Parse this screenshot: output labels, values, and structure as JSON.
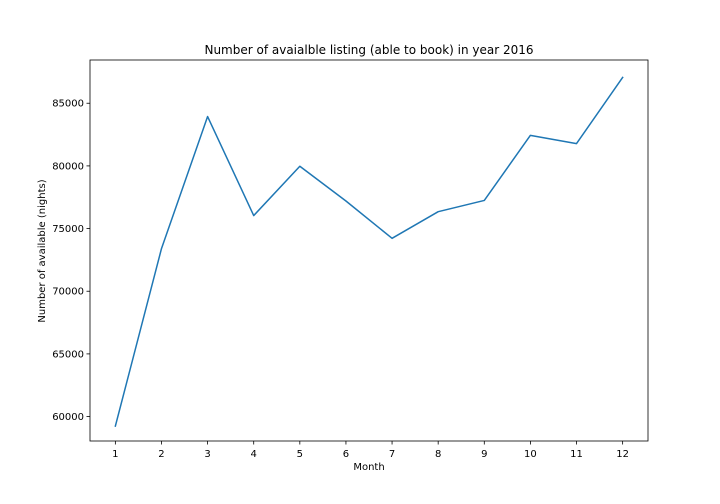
{
  "chart_data": {
    "type": "line",
    "title": "Number of avaialble listing (able to book) in year 2016",
    "xlabel": "Month",
    "ylabel": "Number of available (nights)",
    "x": [
      1,
      2,
      3,
      4,
      5,
      6,
      7,
      8,
      9,
      10,
      11,
      12
    ],
    "x_tick_labels": [
      "1",
      "2",
      "3",
      "4",
      "5",
      "6",
      "7",
      "8",
      "9",
      "10",
      "11",
      "12"
    ],
    "series": [
      {
        "values": [
          59239,
          73400,
          83938,
          76037,
          79971,
          77200,
          74222,
          76347,
          77246,
          82438,
          81780,
          87061
        ],
        "color": "#1f77b4"
      }
    ],
    "y_ticks": [
      60000,
      65000,
      70000,
      75000,
      80000,
      85000
    ],
    "y_tick_labels": [
      "60000",
      "65000",
      "70000",
      "75000",
      "80000",
      "85000"
    ],
    "xlim": [
      0.45,
      12.55
    ],
    "ylim": [
      58050,
      88450
    ],
    "grid": false,
    "legend": "none"
  }
}
